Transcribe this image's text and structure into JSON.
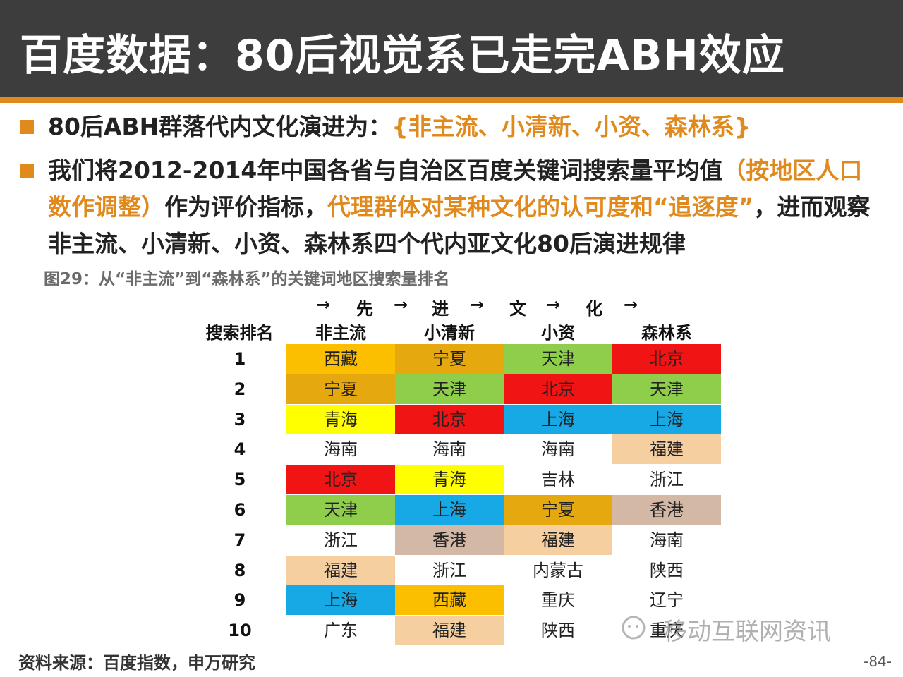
{
  "title": "百度数据：80后视觉系已走完ABH效应",
  "bullets": {
    "b1_text": "80后ABH群落代内文化演进为：",
    "b1_highlight": "{非主流、小清新、小资、森林系}",
    "b2_part1": "我们将2012-2014年中国各省与自治区百度关键词搜索量平均值",
    "b2_highlight1": "（按地区人口数作调整）",
    "b2_part2": "作为评价指标，",
    "b2_highlight2": "代理群体对某种文化的认可度和“追逐度”",
    "b2_part3": "，进而观察非主流、小清新、小资、森林系四个代内亚文化80后演进规律"
  },
  "caption": "图29：从“非主流”到“森林系”的关键词地区搜索量排名",
  "arrow_row": [
    "→",
    "先",
    "→",
    "进",
    "→",
    "文",
    "→",
    "化",
    "→"
  ],
  "table": {
    "rank_header": "搜索排名",
    "columns": [
      "非主流",
      "小清新",
      "小资",
      "森林系"
    ],
    "ranks": [
      "1",
      "2",
      "3",
      "4",
      "5",
      "6",
      "7",
      "8",
      "9",
      "10"
    ],
    "rows": [
      [
        "西藏",
        "宁夏",
        "天津",
        "北京"
      ],
      [
        "宁夏",
        "天津",
        "北京",
        "天津"
      ],
      [
        "青海",
        "北京",
        "上海",
        "上海"
      ],
      [
        "海南",
        "海南",
        "海南",
        "福建"
      ],
      [
        "北京",
        "青海",
        "吉林",
        "浙江"
      ],
      [
        "天津",
        "上海",
        "宁夏",
        "香港"
      ],
      [
        "浙江",
        "香港",
        "福建",
        "海南"
      ],
      [
        "福建",
        "浙江",
        "内蒙古",
        "陕西"
      ],
      [
        "上海",
        "西藏",
        "重庆",
        "辽宁"
      ],
      [
        "广东",
        "福建",
        "陕西",
        "重庆"
      ]
    ],
    "colors": {
      "北京": "#f01414",
      "天津": "#8fce4b",
      "上海": "#17a9e6",
      "宁夏": "#e5a90f",
      "西藏": "#fbbf00",
      "青海": "#ffff00",
      "福建": "#f5cfa0",
      "香港": "#d4b8a6"
    },
    "colored_cells": [
      [
        1,
        1,
        1,
        1
      ],
      [
        1,
        1,
        1,
        1
      ],
      [
        1,
        1,
        1,
        1
      ],
      [
        0,
        0,
        0,
        1
      ],
      [
        1,
        1,
        0,
        0
      ],
      [
        1,
        1,
        1,
        1
      ],
      [
        0,
        1,
        1,
        0
      ],
      [
        1,
        0,
        0,
        0
      ],
      [
        1,
        1,
        0,
        0
      ],
      [
        0,
        1,
        0,
        0
      ]
    ]
  },
  "footer": "资料来源：百度指数，申万研究",
  "page_number": "-84-",
  "watermark": "移动互联网资讯"
}
